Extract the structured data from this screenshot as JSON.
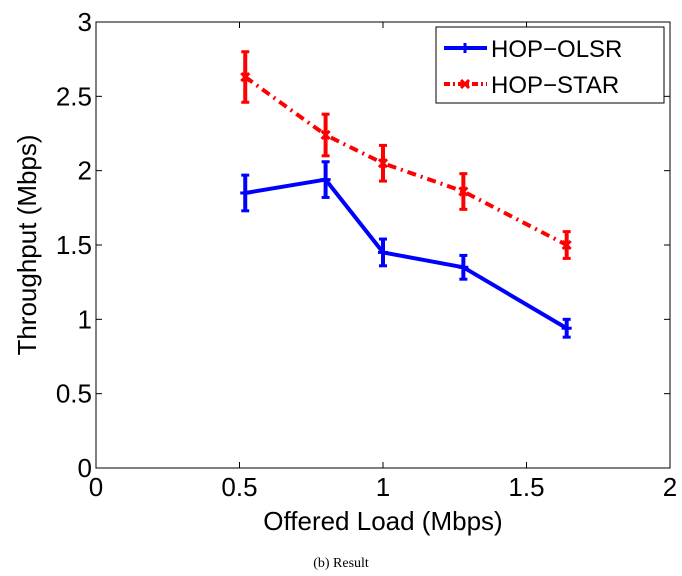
{
  "chart_data": {
    "type": "line",
    "xlabel": "Offered Load (Mbps)",
    "ylabel": "Throughput (Mbps)",
    "xlim": [
      0,
      2
    ],
    "ylim": [
      0,
      3
    ],
    "xticks": [
      "0",
      "0.5",
      "1",
      "1.5",
      "2"
    ],
    "yticks": [
      "0",
      "0.5",
      "1",
      "1.5",
      "2",
      "2.5",
      "3"
    ],
    "grid": false,
    "legend_position": "top-right",
    "series": [
      {
        "name": "HOP−OLSR",
        "color": "#0000ff",
        "line_style": "solid",
        "marker": "plus",
        "x": [
          0.52,
          0.8,
          1.0,
          1.28,
          1.64
        ],
        "y": [
          1.85,
          1.94,
          1.45,
          1.35,
          0.94
        ],
        "error": [
          0.12,
          0.12,
          0.09,
          0.08,
          0.06
        ]
      },
      {
        "name": "HOP−STAR",
        "color": "#ff0000",
        "line_style": "dash-dot",
        "marker": "x",
        "x": [
          0.52,
          0.8,
          1.0,
          1.28,
          1.64
        ],
        "y": [
          2.63,
          2.24,
          2.05,
          1.86,
          1.5
        ],
        "error": [
          0.17,
          0.14,
          0.12,
          0.12,
          0.09
        ]
      }
    ]
  },
  "caption": "(b)  Result"
}
